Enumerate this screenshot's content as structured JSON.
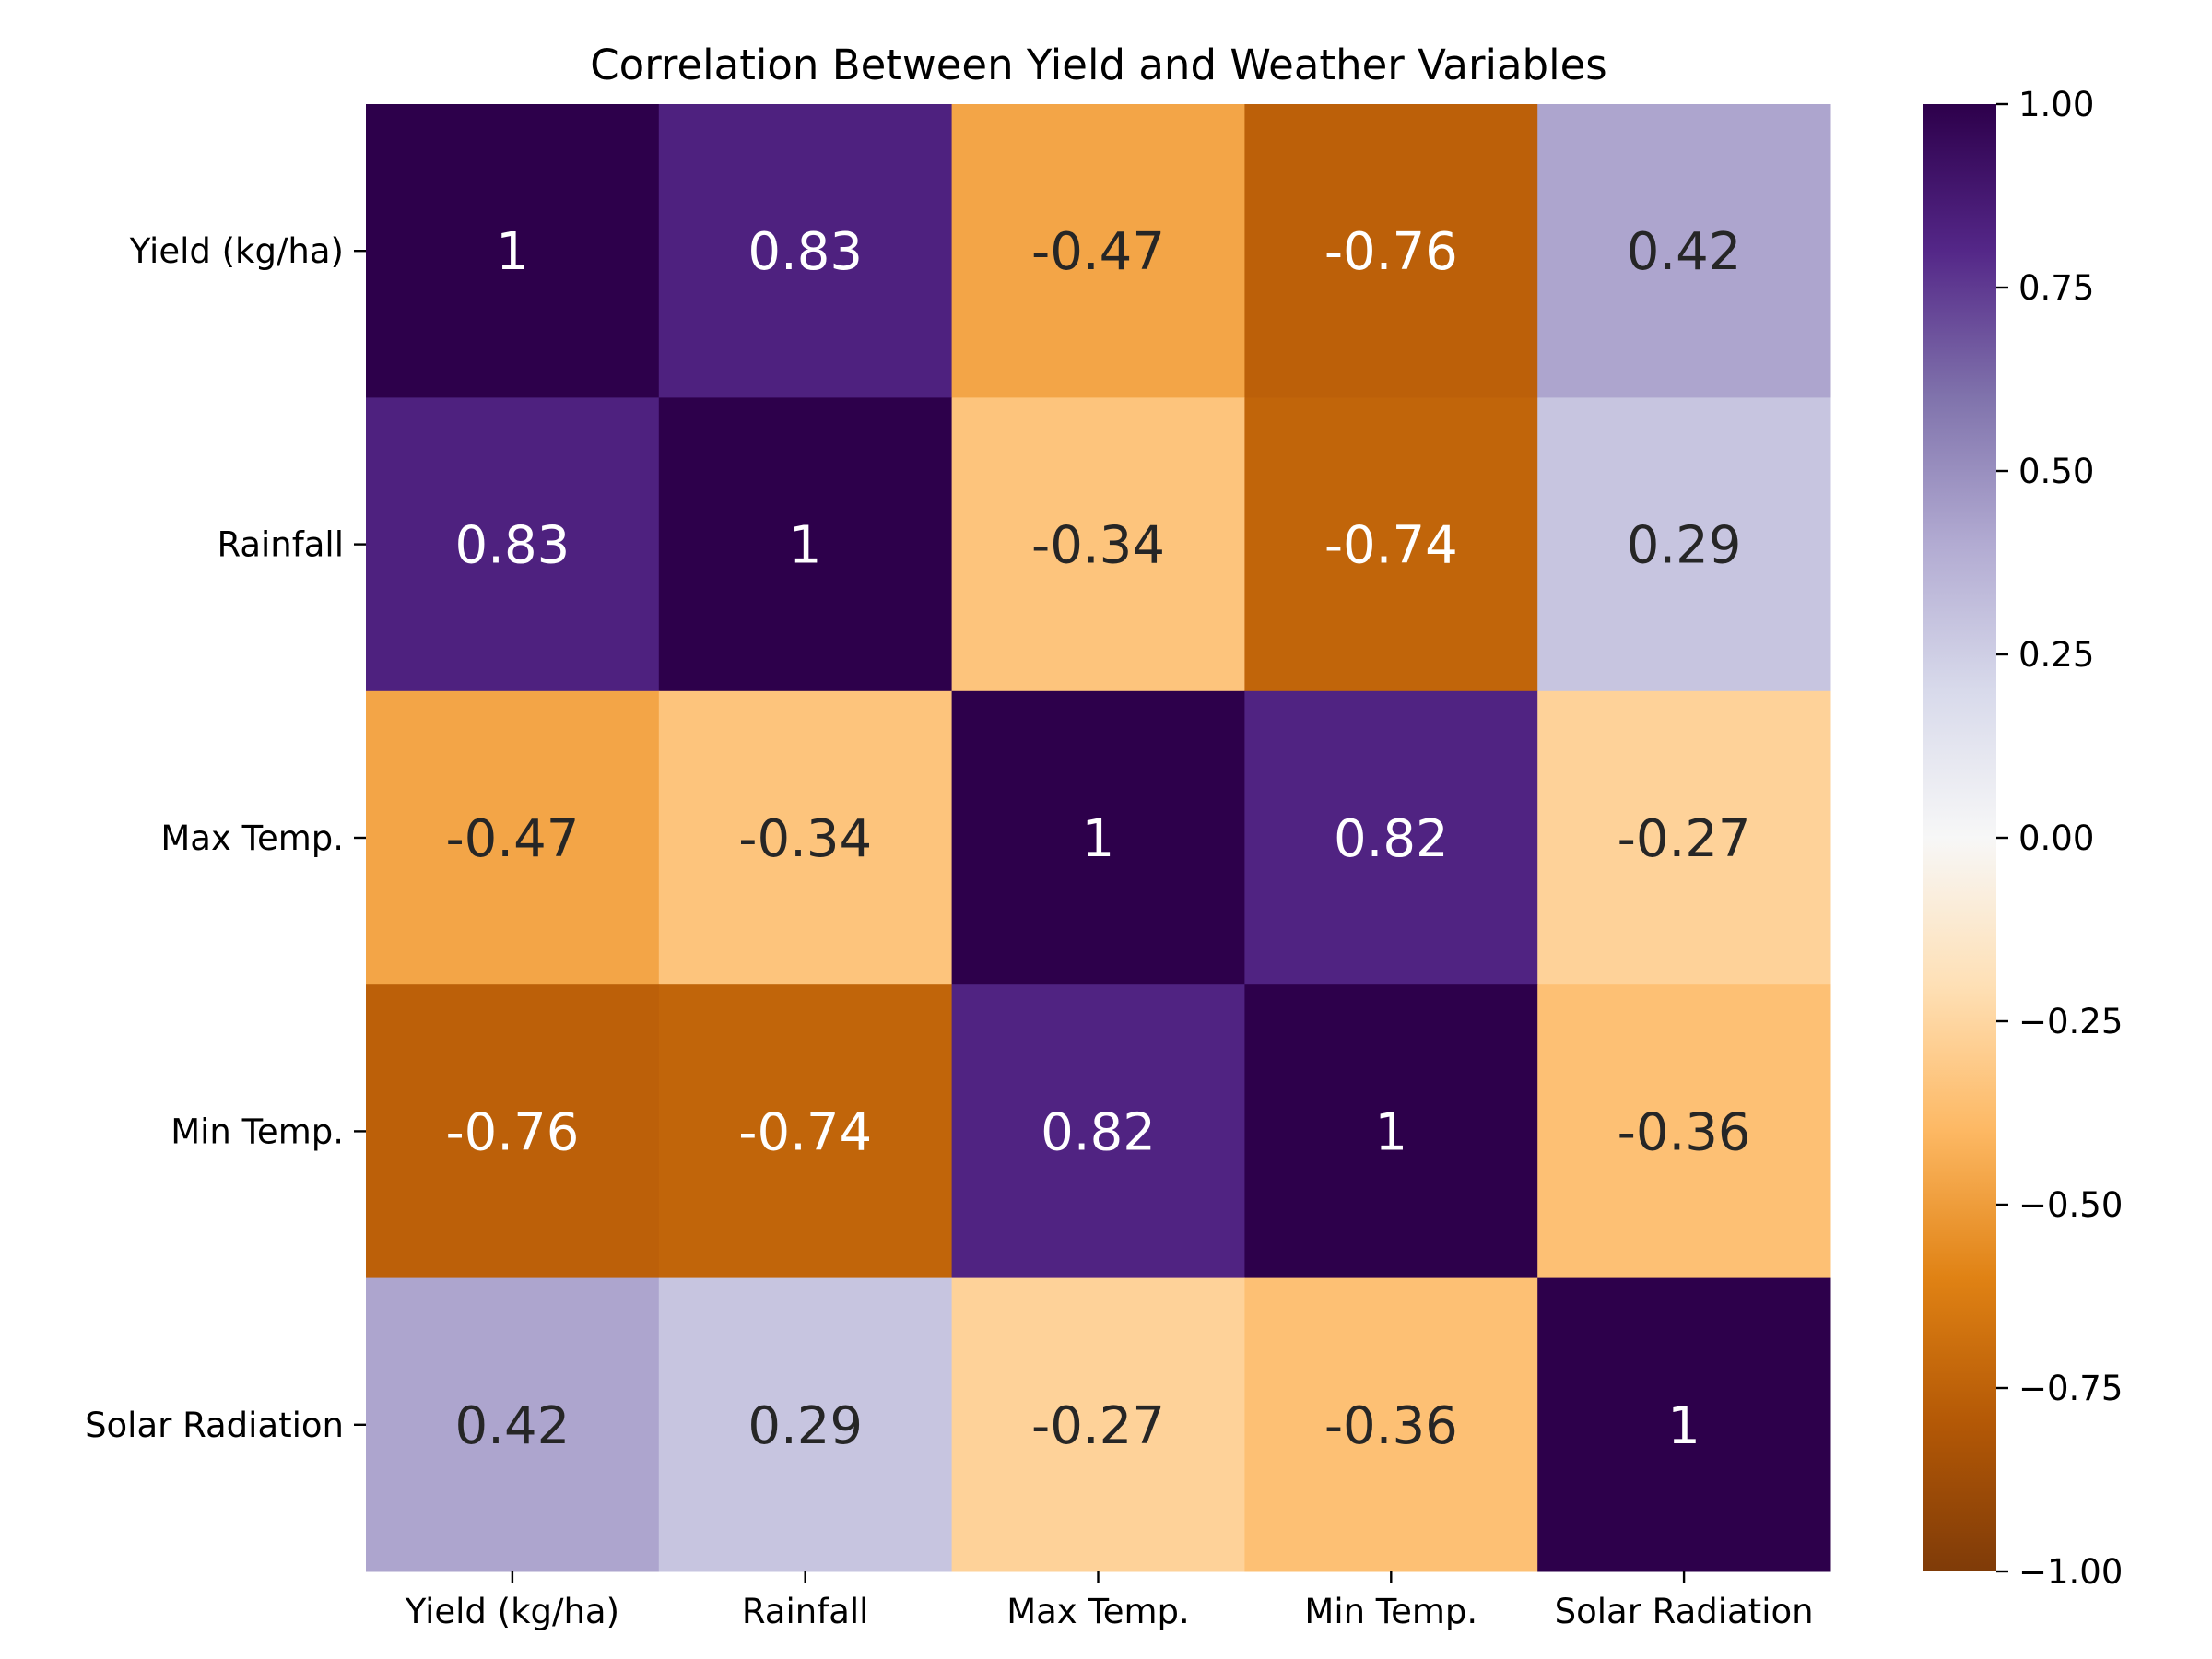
{
  "chart_data": {
    "type": "heatmap",
    "title": "Correlation Between Yield and Weather Variables",
    "xlabel": "",
    "ylabel": "",
    "row_labels": [
      "Yield (kg/ha)",
      "Rainfall",
      "Max Temp.",
      "Min Temp.",
      "Solar Radiation"
    ],
    "col_labels": [
      "Yield (kg/ha)",
      "Rainfall",
      "Max Temp.",
      "Min Temp.",
      "Solar Radiation"
    ],
    "values": [
      [
        1,
        0.83,
        -0.47,
        -0.76,
        0.42
      ],
      [
        0.83,
        1,
        -0.34,
        -0.74,
        0.29
      ],
      [
        -0.47,
        -0.34,
        1,
        0.82,
        -0.27
      ],
      [
        -0.76,
        -0.74,
        0.82,
        1,
        -0.36
      ],
      [
        0.42,
        0.29,
        -0.27,
        -0.36,
        1
      ]
    ],
    "value_labels": [
      [
        "1",
        "0.83",
        "-0.47",
        "-0.76",
        "0.42"
      ],
      [
        "0.83",
        "1",
        "-0.34",
        "-0.74",
        "0.29"
      ],
      [
        "-0.47",
        "-0.34",
        "1",
        "0.82",
        "-0.27"
      ],
      [
        "-0.76",
        "-0.74",
        "0.82",
        "1",
        "-0.36"
      ],
      [
        "0.42",
        "0.29",
        "-0.27",
        "-0.36",
        "1"
      ]
    ],
    "colormap": "PuOr",
    "vmin": -1.0,
    "vmax": 1.0,
    "colorbar_ticks": [
      1.0,
      0.75,
      0.5,
      0.25,
      0.0,
      -0.25,
      -0.5,
      -0.75,
      -1.0
    ],
    "colorbar_tick_labels": [
      "1.00",
      "0.75",
      "0.50",
      "0.25",
      "0.00",
      "−0.25",
      "−0.50",
      "−0.75",
      "−1.00"
    ],
    "colorbar_placement": "right"
  },
  "colors": {
    "dark_text": "#262626",
    "light_text": "#ffffff",
    "colormap_stops": [
      "#7f3b08",
      "#b35806",
      "#e08214",
      "#fdb863",
      "#fee0b6",
      "#f7f7f7",
      "#d8daeb",
      "#b2abd2",
      "#8073ac",
      "#542788",
      "#2d004b"
    ]
  }
}
